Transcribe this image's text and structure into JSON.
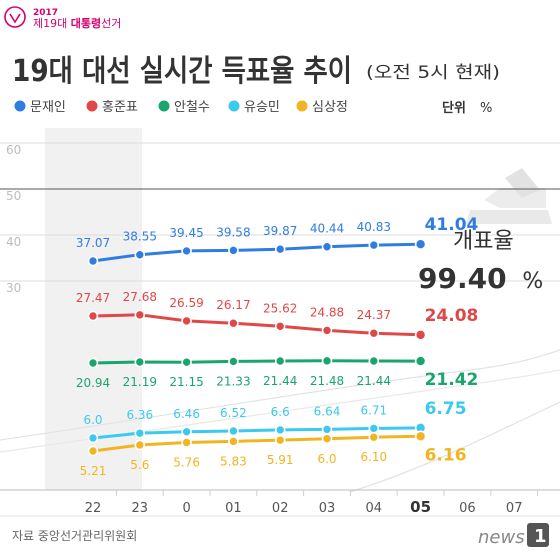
{
  "badge": {
    "year": "2017",
    "line_prefix": "제19대 ",
    "line_bold": "대통령",
    "line_suffix": "선거"
  },
  "header": {
    "title": "19대 대선 실시간 득표율 추이",
    "subtitle": "(오전 5시 현재)",
    "unit_label": "단위",
    "unit": "%"
  },
  "counting": {
    "label": "개표율",
    "value": "99.40",
    "unit": "%"
  },
  "footer": {
    "source": "자료  중앙선거관리위원회",
    "brand": "news",
    "brand_number": "1"
  },
  "colors": {
    "moon": "#2f7de1",
    "hong": "#e04848",
    "ahn": "#1aa56e",
    "yoo": "#3cc9ef",
    "sim": "#f2b521",
    "badge": "#d6006f",
    "title": "#333333"
  },
  "chart_data": {
    "type": "line",
    "title": "19대 대선 실시간 득표율 추이",
    "subtitle": "(오전 5시 현재)",
    "ylabel": "%",
    "ylim": [
      0,
      60
    ],
    "yticks": [
      30,
      40,
      50,
      60
    ],
    "x_ticks": [
      "22",
      "23",
      "0",
      "01",
      "02",
      "03",
      "04",
      "05",
      "06",
      "07"
    ],
    "highlight_tick": "05",
    "legend_position": "top",
    "grid": true,
    "series": [
      {
        "key": "moon",
        "name": "문재인",
        "label_pos": "above",
        "x": [
          "22",
          "23",
          "0",
          "01",
          "02",
          "03",
          "04",
          "05"
        ],
        "values": [
          37.07,
          38.55,
          39.45,
          39.58,
          39.87,
          40.44,
          40.83,
          41.04
        ],
        "labels": [
          "37.07",
          "38.55",
          "39.45",
          "39.58",
          "39.87",
          "40.44",
          "40.83",
          "41.04"
        ]
      },
      {
        "key": "hong",
        "name": "홍준표",
        "label_pos": "above",
        "x": [
          "22",
          "23",
          "0",
          "01",
          "02",
          "03",
          "04",
          "05"
        ],
        "values": [
          27.47,
          27.68,
          26.59,
          26.17,
          25.62,
          24.88,
          24.37,
          24.08
        ],
        "labels": [
          "27.47",
          "27.68",
          "26.59",
          "26.17",
          "25.62",
          "24.88",
          "24.37",
          "24.08"
        ]
      },
      {
        "key": "ahn",
        "name": "안철수",
        "label_pos": "below",
        "x": [
          "22",
          "23",
          "0",
          "01",
          "02",
          "03",
          "04",
          "05"
        ],
        "values": [
          20.94,
          21.19,
          21.15,
          21.33,
          21.44,
          21.48,
          21.44,
          21.42
        ],
        "labels": [
          "20.94",
          "21.19",
          "21.15",
          "21.33",
          "21.44",
          "21.48",
          "21.44",
          "21.42"
        ]
      },
      {
        "key": "yoo",
        "name": "유승민",
        "label_pos": "above",
        "x": [
          "22",
          "23",
          "0",
          "01",
          "02",
          "03",
          "04",
          "05"
        ],
        "values": [
          6.0,
          6.36,
          6.46,
          6.52,
          6.6,
          6.64,
          6.71,
          6.75
        ],
        "labels": [
          "6.0",
          "6.36",
          "6.46",
          "6.52",
          "6.6",
          "6.64",
          "6.71",
          "6.75"
        ]
      },
      {
        "key": "sim",
        "name": "심상정",
        "label_pos": "below",
        "x": [
          "22",
          "23",
          "0",
          "01",
          "02",
          "03",
          "04",
          "05"
        ],
        "values": [
          5.21,
          5.6,
          5.76,
          5.83,
          5.91,
          6.0,
          6.1,
          6.16
        ],
        "labels": [
          "5.21",
          "5.6",
          "5.76",
          "5.83",
          "5.91",
          "6.0",
          "6.10",
          "6.16"
        ]
      }
    ]
  }
}
